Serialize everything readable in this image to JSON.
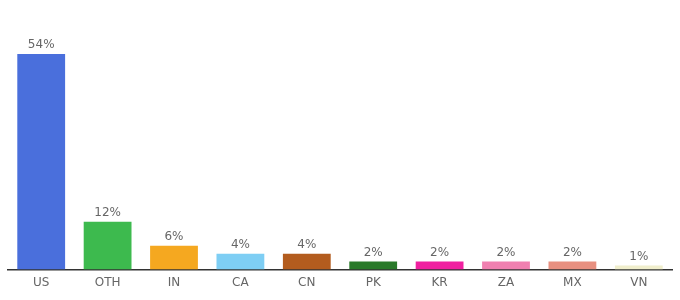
{
  "chart_data": {
    "type": "bar",
    "categories": [
      "US",
      "OTH",
      "IN",
      "CA",
      "CN",
      "PK",
      "KR",
      "ZA",
      "MX",
      "VN"
    ],
    "values": [
      54,
      12,
      6,
      4,
      4,
      2,
      2,
      2,
      2,
      1
    ],
    "value_labels": [
      "54%",
      "12%",
      "6%",
      "4%",
      "4%",
      "2%",
      "2%",
      "2%",
      "2%",
      "1%"
    ],
    "colors": [
      "#4a6fdc",
      "#3dba4e",
      "#f5a820",
      "#7ecef4",
      "#b35c1e",
      "#2a7a2a",
      "#f020a0",
      "#f080b0",
      "#e89080",
      "#f0eecc"
    ],
    "ylim": [
      0,
      62
    ],
    "data_labels": true,
    "tick_labels": "x",
    "grid": false
  }
}
